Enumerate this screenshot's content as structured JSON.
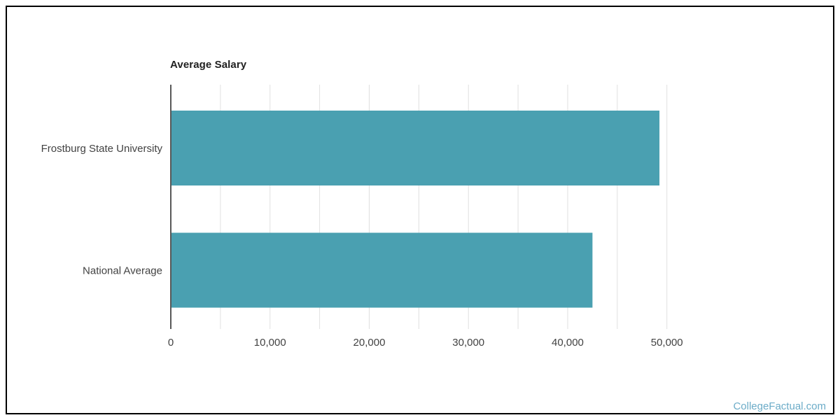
{
  "chart_data": {
    "type": "bar",
    "orientation": "horizontal",
    "title": "Average Salary",
    "categories": [
      "Frostburg State University",
      "National Average"
    ],
    "values": [
      49250,
      42500
    ],
    "xlabel": "",
    "ylabel": "",
    "xlim": [
      0,
      50000
    ],
    "x_gridline_step": 5000,
    "x_label_step": 10000,
    "x_tick_labels": [
      "0",
      "10,000",
      "20,000",
      "30,000",
      "40,000",
      "50,000"
    ],
    "grid": true,
    "legend": false,
    "colors": {
      "bar": "#4AA0B1",
      "gridline": "#E0E0E0",
      "axis": "#212121",
      "tick_text": "#424242",
      "category_text": "#424242",
      "title_text": "#212121",
      "frame_border": "#000000",
      "background": "#FFFFFF",
      "watermark": "#6CACC8"
    }
  },
  "watermark": {
    "text": "CollegeFactual.com"
  }
}
